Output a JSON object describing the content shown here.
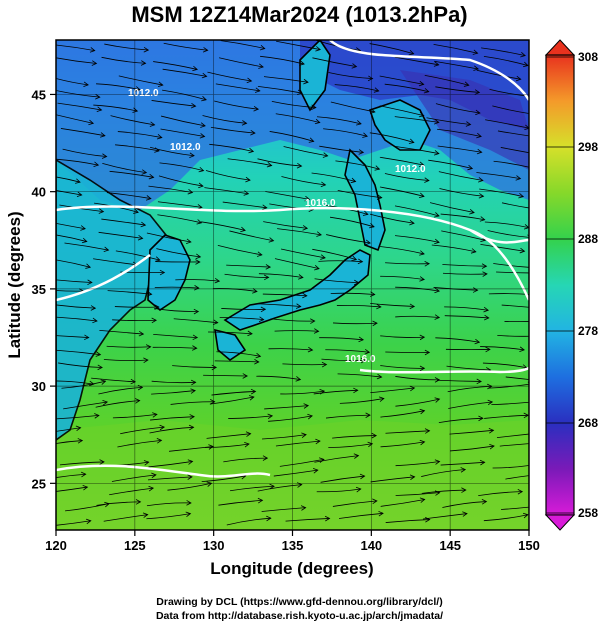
{
  "title": "MSM 12Z14Mar2024 (1013.2hPa)",
  "x_axis": {
    "label": "Longitude (degrees)",
    "ticks": [
      "120",
      "125",
      "130",
      "135",
      "140",
      "145",
      "150"
    ]
  },
  "y_axis": {
    "label": "Latitude  (degrees)",
    "ticks": [
      "25",
      "30",
      "35",
      "40",
      "45"
    ]
  },
  "colorbar": {
    "ticks": [
      "258",
      "268",
      "278",
      "288",
      "298",
      "308"
    ],
    "colors": [
      "#d81bd8",
      "#5a1ab0",
      "#1e3fd6",
      "#1f8de6",
      "#22c8dc",
      "#2ed69a",
      "#32d24a",
      "#7ad62a",
      "#c6e02a",
      "#f0d22a",
      "#f5952a",
      "#e8321e"
    ]
  },
  "contour_labels": [
    "1012.0",
    "1012.0",
    "1016.0",
    "1012.0",
    "1016.0"
  ],
  "credits": {
    "line1": "Drawing by DCL (https://www.gfd-dennou.org/library/dcl/)",
    "line2": "Data from http://database.rish.kyoto-u.ac.jp/arch/jmadata/"
  }
}
